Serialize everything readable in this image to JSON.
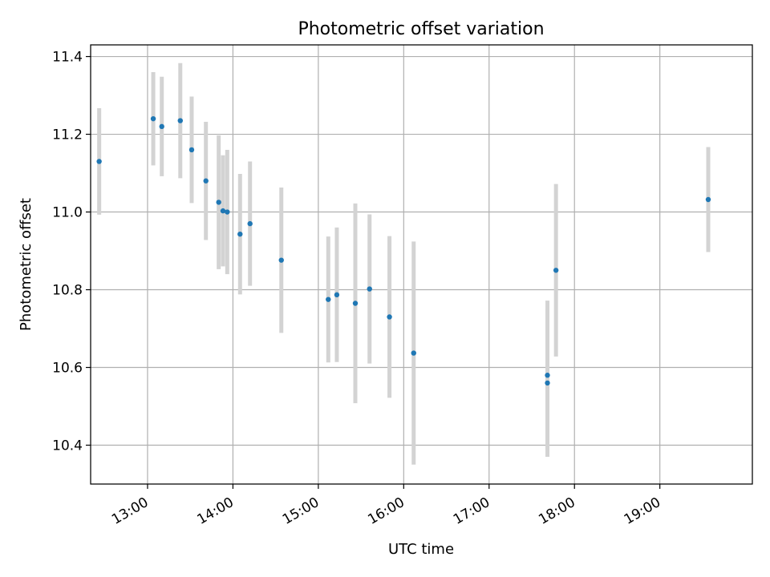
{
  "chart_data": {
    "type": "scatter",
    "title": "Photometric offset variation",
    "xlabel": "UTC time",
    "ylabel": "Photometric offset",
    "xlim": [
      "12:20",
      "20:05"
    ],
    "ylim": [
      10.3,
      11.43
    ],
    "xticks": [
      "13:00",
      "14:00",
      "15:00",
      "16:00",
      "17:00",
      "18:00",
      "19:00"
    ],
    "yticks": [
      "10.4",
      "10.6",
      "10.8",
      "11.0",
      "11.2",
      "11.4"
    ],
    "grid": true,
    "colors": {
      "point": "#1f77b4",
      "errorbar": "#d3d3d3",
      "grid": "#b0b0b0"
    },
    "series": [
      {
        "points": [
          {
            "x": "12:26",
            "y": 11.13,
            "yerr": 0.137
          },
          {
            "x": "13:04",
            "y": 11.24,
            "yerr": 0.12
          },
          {
            "x": "13:10",
            "y": 11.22,
            "yerr": 0.128
          },
          {
            "x": "13:23",
            "y": 11.235,
            "yerr": 0.148
          },
          {
            "x": "13:31",
            "y": 11.16,
            "yerr": 0.137
          },
          {
            "x": "13:41",
            "y": 11.08,
            "yerr": 0.152
          },
          {
            "x": "13:50",
            "y": 11.025,
            "yerr": 0.172
          },
          {
            "x": "13:53",
            "y": 11.003,
            "yerr": 0.143
          },
          {
            "x": "13:56",
            "y": 11.0,
            "yerr": 0.16
          },
          {
            "x": "14:05",
            "y": 10.943,
            "yerr": 0.155
          },
          {
            "x": "14:12",
            "y": 10.97,
            "yerr": 0.16
          },
          {
            "x": "14:34",
            "y": 10.876,
            "yerr": 0.187
          },
          {
            "x": "15:07",
            "y": 10.775,
            "yerr": 0.162
          },
          {
            "x": "15:13",
            "y": 10.787,
            "yerr": 0.173
          },
          {
            "x": "15:26",
            "y": 10.765,
            "yerr": 0.257
          },
          {
            "x": "15:36",
            "y": 10.802,
            "yerr": 0.192
          },
          {
            "x": "15:50",
            "y": 10.73,
            "yerr": 0.208
          },
          {
            "x": "16:07",
            "y": 10.637,
            "yerr": 0.287
          },
          {
            "x": "17:41",
            "y": 10.58,
            "yerr": 0.192
          },
          {
            "x": "17:41",
            "y": 10.56,
            "yerr": 0.19
          },
          {
            "x": "17:47",
            "y": 10.85,
            "yerr": 0.222
          },
          {
            "x": "19:34",
            "y": 11.032,
            "yerr": 0.135
          }
        ]
      }
    ]
  }
}
